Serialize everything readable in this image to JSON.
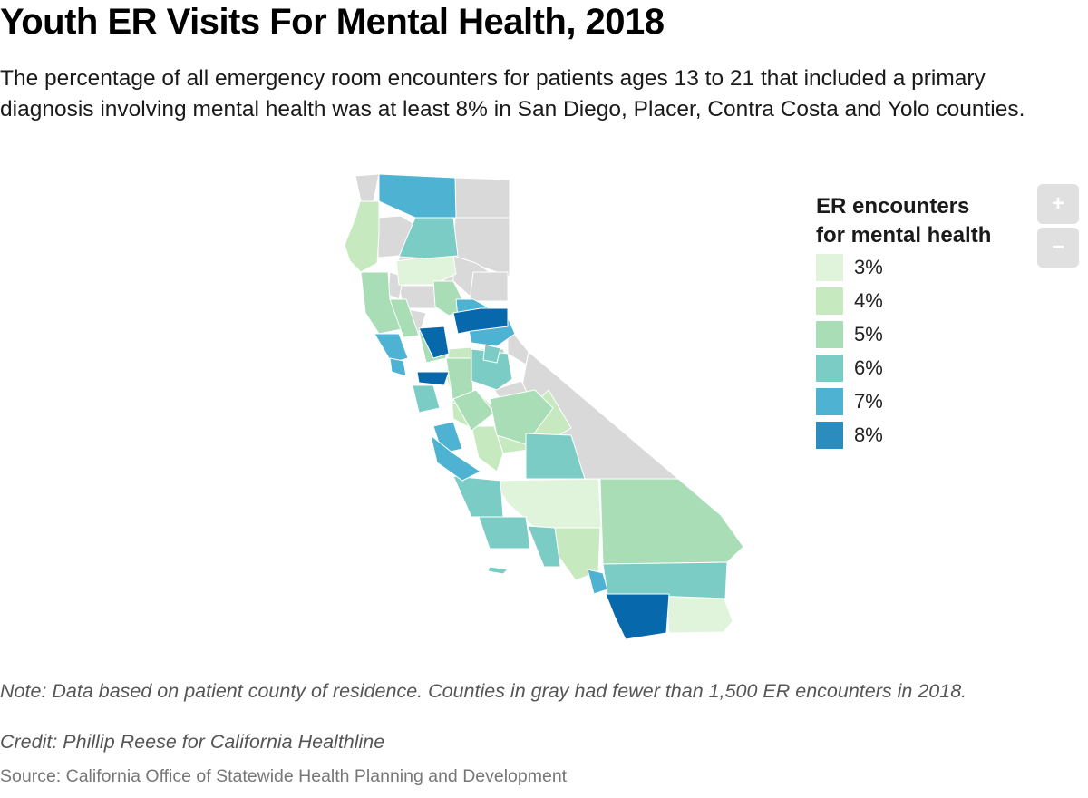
{
  "title": "Youth ER Visits For Mental Health, 2018",
  "subtitle": "The percentage of all emergency room encounters for patients ages 13 to 21 that included a primary diagnosis involving mental health was at least 8% in San Diego, Placer, Contra Costa and Yolo counties.",
  "legend": {
    "title": "ER encounters\nfor mental health",
    "items": [
      {
        "label": "3%",
        "color": "#e0f3db"
      },
      {
        "label": "4%",
        "color": "#c7e9c0"
      },
      {
        "label": "5%",
        "color": "#a8ddb5"
      },
      {
        "label": "6%",
        "color": "#7bccc4"
      },
      {
        "label": "7%",
        "color": "#4eb3d3"
      },
      {
        "label": "8%",
        "color": "#2b8cbe"
      }
    ]
  },
  "colors": {
    "no_data": "#d9d9d9",
    "pct_3": "#e0f3db",
    "pct_4": "#c7e9c0",
    "pct_5": "#a8ddb5",
    "pct_6": "#7bccc4",
    "pct_7": "#4eb3d3",
    "pct_8": "#2b8cbe",
    "pct_9": "#0868ac"
  },
  "zoom": {
    "in_label": "+",
    "out_label": "−"
  },
  "note": "Note: Data based on patient county of residence. Counties in gray had fewer than 1,500 ER encounters in 2018.",
  "credit": "Credit: Phillip Reese for California Healthline",
  "source": "Source: California Office of Statewide Health Planning and Development"
}
